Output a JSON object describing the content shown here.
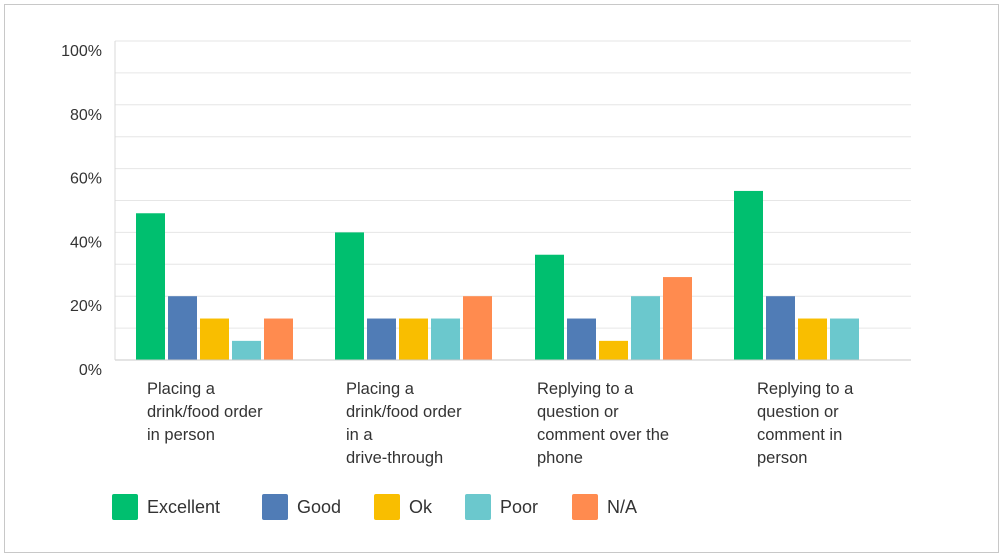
{
  "chart_data": {
    "type": "bar",
    "categories": [
      "Placing a\ndrink/food order\nin person",
      "Placing a\ndrink/food order\nin a\ndrive-through",
      "Replying to a\nquestion or\ncomment over the\nphone",
      "Replying to a\nquestion or\ncomment in\nperson"
    ],
    "series": [
      {
        "name": "Excellent",
        "color": "#00BF6F",
        "values": [
          46,
          40,
          33,
          53
        ]
      },
      {
        "name": "Good",
        "color": "#507CB6",
        "values": [
          20,
          13,
          13,
          20
        ]
      },
      {
        "name": "Ok",
        "color": "#F9BE00",
        "values": [
          13,
          13,
          6,
          13
        ]
      },
      {
        "name": "Poor",
        "color": "#6BC8CD",
        "values": [
          6,
          13,
          20,
          13
        ]
      },
      {
        "name": "N/A",
        "color": "#FF8B4F",
        "values": [
          13,
          20,
          26,
          null
        ]
      }
    ],
    "ylim": [
      0,
      100
    ],
    "y_ticks": [
      "0%",
      "20%",
      "40%",
      "60%",
      "80%",
      "100%"
    ],
    "grid": true,
    "legend_position": "bottom-left",
    "title": "",
    "xlabel": "",
    "ylabel": ""
  }
}
